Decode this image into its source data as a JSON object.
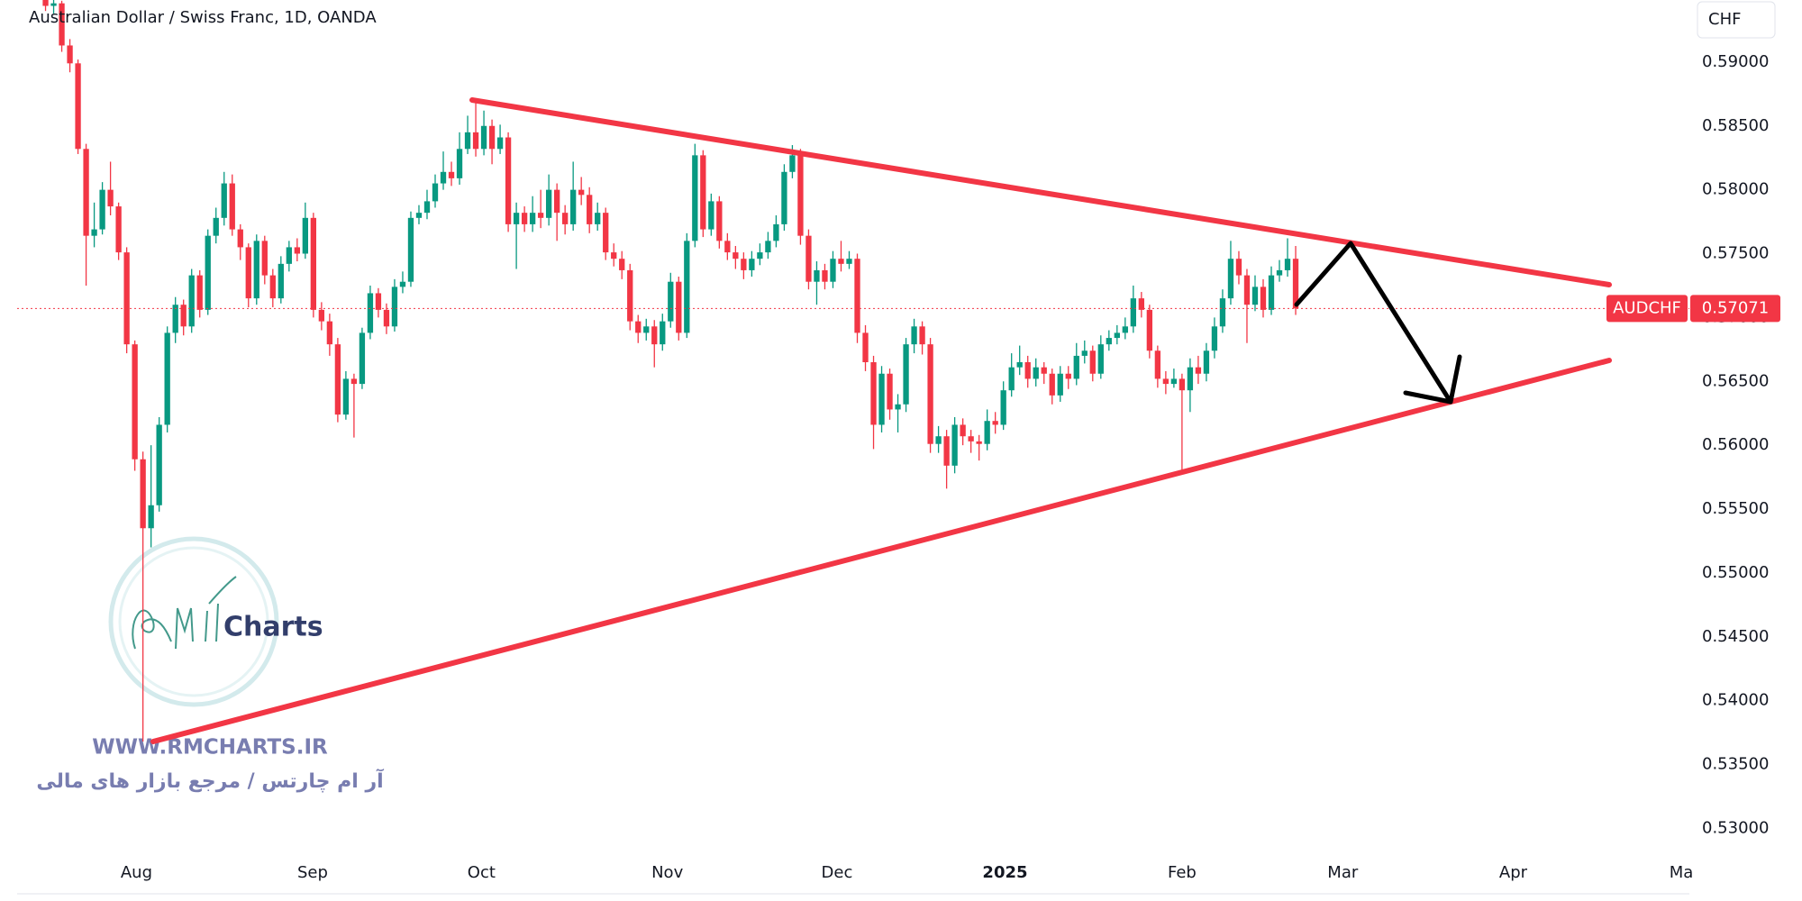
{
  "chart_data": {
    "type": "candlestick",
    "title": "Australian Dollar / Swiss Franc, 1D, OANDA",
    "currency": "CHF",
    "symbol": "AUDCHF",
    "up_color": "#089981",
    "down_color": "#f23645",
    "grid": false,
    "xlim": [
      -3.5,
      202.5
    ],
    "xticks": [
      {
        "value": 11.2,
        "label": "Aug"
      },
      {
        "value": 32.9,
        "label": "Sep"
      },
      {
        "value": 53.7,
        "label": "Oct"
      },
      {
        "value": 76.6,
        "label": "Nov"
      },
      {
        "value": 97.5,
        "label": "Dec"
      },
      {
        "value": 118.2,
        "label": "2025"
      },
      {
        "value": 140,
        "label": "Feb"
      },
      {
        "value": 159.8,
        "label": "Mar"
      },
      {
        "value": 180.8,
        "label": "Apr"
      },
      {
        "value": 201.5,
        "label": "Ma"
      }
    ],
    "ylim": [
      0.52784,
      0.59486
    ],
    "yticks": [
      {
        "value": 0.59,
        "label": "0.59000"
      },
      {
        "value": 0.585,
        "label": "0.58500"
      },
      {
        "value": 0.58,
        "label": "0.58000"
      },
      {
        "value": 0.575,
        "label": "0.57500"
      },
      {
        "value": 0.57,
        "label": "0.57000"
      },
      {
        "value": 0.565,
        "label": "0.56500"
      },
      {
        "value": 0.56,
        "label": "0.56000"
      },
      {
        "value": 0.555,
        "label": "0.55500"
      },
      {
        "value": 0.55,
        "label": "0.55000"
      },
      {
        "value": 0.545,
        "label": "0.54500"
      },
      {
        "value": 0.54,
        "label": "0.54000"
      },
      {
        "value": 0.535,
        "label": "0.53500"
      },
      {
        "value": 0.53,
        "label": "0.53000"
      }
    ],
    "ohlc": [
      [
        0.595,
        0.5956,
        0.594,
        0.5944
      ],
      [
        0.5944,
        0.5952,
        0.5938,
        0.5946
      ],
      [
        0.5946,
        0.5948,
        0.5908,
        0.5913
      ],
      [
        0.5913,
        0.5918,
        0.5892,
        0.5899
      ],
      [
        0.5899,
        0.5902,
        0.5828,
        0.5832
      ],
      [
        0.5832,
        0.5836,
        0.5725,
        0.5764
      ],
      [
        0.5764,
        0.579,
        0.5755,
        0.5769
      ],
      [
        0.5769,
        0.5806,
        0.5765,
        0.58
      ],
      [
        0.58,
        0.5822,
        0.578,
        0.5787
      ],
      [
        0.5787,
        0.579,
        0.5745,
        0.5751
      ],
      [
        0.5751,
        0.5755,
        0.5672,
        0.5679
      ],
      [
        0.5679,
        0.5682,
        0.558,
        0.5589
      ],
      [
        0.5589,
        0.5595,
        0.5368,
        0.5535
      ],
      [
        0.5535,
        0.56,
        0.552,
        0.5553
      ],
      [
        0.5553,
        0.5622,
        0.5548,
        0.5616
      ],
      [
        0.5616,
        0.5693,
        0.561,
        0.5688
      ],
      [
        0.5688,
        0.5716,
        0.568,
        0.571
      ],
      [
        0.571,
        0.5714,
        0.5686,
        0.5693
      ],
      [
        0.5693,
        0.5738,
        0.5688,
        0.5733
      ],
      [
        0.5733,
        0.5737,
        0.57,
        0.5706
      ],
      [
        0.5706,
        0.5769,
        0.5702,
        0.5764
      ],
      [
        0.5764,
        0.5786,
        0.5758,
        0.5778
      ],
      [
        0.5778,
        0.5814,
        0.5772,
        0.5805
      ],
      [
        0.5805,
        0.5812,
        0.5764,
        0.5769
      ],
      [
        0.5769,
        0.5773,
        0.5745,
        0.5755
      ],
      [
        0.5755,
        0.5758,
        0.5708,
        0.5715
      ],
      [
        0.5715,
        0.5765,
        0.571,
        0.576
      ],
      [
        0.576,
        0.5764,
        0.5726,
        0.5733
      ],
      [
        0.5733,
        0.5738,
        0.5708,
        0.5715
      ],
      [
        0.5715,
        0.5748,
        0.5711,
        0.5742
      ],
      [
        0.5742,
        0.576,
        0.5736,
        0.5755
      ],
      [
        0.5755,
        0.5762,
        0.5744,
        0.575
      ],
      [
        0.575,
        0.579,
        0.5746,
        0.5778
      ],
      [
        0.5778,
        0.5782,
        0.57,
        0.5706
      ],
      [
        0.5706,
        0.5712,
        0.569,
        0.5697
      ],
      [
        0.5697,
        0.5703,
        0.567,
        0.5679
      ],
      [
        0.5679,
        0.5684,
        0.5618,
        0.5624
      ],
      [
        0.5624,
        0.5658,
        0.562,
        0.5652
      ],
      [
        0.5652,
        0.5656,
        0.5606,
        0.5648
      ],
      [
        0.5648,
        0.5692,
        0.5644,
        0.5688
      ],
      [
        0.5688,
        0.5725,
        0.5683,
        0.5719
      ],
      [
        0.5719,
        0.5723,
        0.57,
        0.5706
      ],
      [
        0.5706,
        0.5711,
        0.5687,
        0.5693
      ],
      [
        0.5693,
        0.573,
        0.5689,
        0.5724
      ],
      [
        0.5724,
        0.5736,
        0.5719,
        0.5728
      ],
      [
        0.5728,
        0.5783,
        0.5724,
        0.5778
      ],
      [
        0.5778,
        0.5788,
        0.5773,
        0.5782
      ],
      [
        0.5782,
        0.58,
        0.5777,
        0.5791
      ],
      [
        0.5791,
        0.5812,
        0.5786,
        0.5805
      ],
      [
        0.5805,
        0.583,
        0.58,
        0.5814
      ],
      [
        0.5814,
        0.5822,
        0.5803,
        0.5809
      ],
      [
        0.5809,
        0.5845,
        0.5804,
        0.5832
      ],
      [
        0.5832,
        0.5858,
        0.5828,
        0.5845
      ],
      [
        0.5845,
        0.5869,
        0.5826,
        0.5832
      ],
      [
        0.5832,
        0.5862,
        0.5827,
        0.585
      ],
      [
        0.585,
        0.5855,
        0.582,
        0.5832
      ],
      [
        0.5832,
        0.5851,
        0.5828,
        0.5841
      ],
      [
        0.5841,
        0.5845,
        0.5767,
        0.5773
      ],
      [
        0.5773,
        0.579,
        0.5738,
        0.5782
      ],
      [
        0.5782,
        0.5787,
        0.5767,
        0.5773
      ],
      [
        0.5773,
        0.5795,
        0.5767,
        0.5782
      ],
      [
        0.5782,
        0.58,
        0.577,
        0.5778
      ],
      [
        0.5778,
        0.5812,
        0.5772,
        0.58
      ],
      [
        0.58,
        0.5805,
        0.576,
        0.5782
      ],
      [
        0.5782,
        0.5788,
        0.5765,
        0.5773
      ],
      [
        0.5773,
        0.5822,
        0.5768,
        0.58
      ],
      [
        0.58,
        0.581,
        0.5788,
        0.5796
      ],
      [
        0.5796,
        0.5802,
        0.5766,
        0.5773
      ],
      [
        0.5773,
        0.579,
        0.5768,
        0.5782
      ],
      [
        0.5782,
        0.5786,
        0.5745,
        0.5751
      ],
      [
        0.5751,
        0.5758,
        0.574,
        0.5746
      ],
      [
        0.5746,
        0.5752,
        0.573,
        0.5737
      ],
      [
        0.5737,
        0.5742,
        0.569,
        0.5697
      ],
      [
        0.5697,
        0.5702,
        0.568,
        0.5688
      ],
      [
        0.5688,
        0.5699,
        0.5682,
        0.5693
      ],
      [
        0.5693,
        0.5698,
        0.5661,
        0.5679
      ],
      [
        0.5679,
        0.5703,
        0.5674,
        0.5697
      ],
      [
        0.5697,
        0.5735,
        0.5692,
        0.5728
      ],
      [
        0.5728,
        0.5732,
        0.5682,
        0.5688
      ],
      [
        0.5688,
        0.5766,
        0.5684,
        0.576
      ],
      [
        0.576,
        0.5836,
        0.5755,
        0.5827
      ],
      [
        0.5827,
        0.5831,
        0.5763,
        0.5769
      ],
      [
        0.5769,
        0.5797,
        0.5764,
        0.5791
      ],
      [
        0.5791,
        0.5795,
        0.5754,
        0.576
      ],
      [
        0.576,
        0.5766,
        0.5745,
        0.5751
      ],
      [
        0.5751,
        0.5756,
        0.5738,
        0.5746
      ],
      [
        0.5746,
        0.5751,
        0.573,
        0.5737
      ],
      [
        0.5737,
        0.5752,
        0.5732,
        0.5746
      ],
      [
        0.5746,
        0.5758,
        0.5741,
        0.5751
      ],
      [
        0.5751,
        0.5767,
        0.5746,
        0.576
      ],
      [
        0.576,
        0.578,
        0.5755,
        0.5773
      ],
      [
        0.5773,
        0.582,
        0.5768,
        0.5814
      ],
      [
        0.5814,
        0.5835,
        0.5809,
        0.5827
      ],
      [
        0.5827,
        0.5832,
        0.5757,
        0.5764
      ],
      [
        0.5764,
        0.5769,
        0.5722,
        0.5728
      ],
      [
        0.5728,
        0.5744,
        0.571,
        0.5737
      ],
      [
        0.5737,
        0.5742,
        0.5722,
        0.5728
      ],
      [
        0.5728,
        0.5752,
        0.5723,
        0.5746
      ],
      [
        0.5746,
        0.576,
        0.5736,
        0.5742
      ],
      [
        0.5742,
        0.5752,
        0.5738,
        0.5746
      ],
      [
        0.5746,
        0.575,
        0.568,
        0.5688
      ],
      [
        0.5688,
        0.5694,
        0.5658,
        0.5665
      ],
      [
        0.5665,
        0.567,
        0.5597,
        0.5616
      ],
      [
        0.5616,
        0.5662,
        0.561,
        0.5656
      ],
      [
        0.5656,
        0.566,
        0.562,
        0.5628
      ],
      [
        0.5628,
        0.564,
        0.561,
        0.5632
      ],
      [
        0.5632,
        0.5684,
        0.5626,
        0.5679
      ],
      [
        0.5679,
        0.5699,
        0.5672,
        0.5693
      ],
      [
        0.5693,
        0.5697,
        0.5671,
        0.5679
      ],
      [
        0.5679,
        0.5684,
        0.5594,
        0.5601
      ],
      [
        0.5601,
        0.5615,
        0.5594,
        0.5607
      ],
      [
        0.5607,
        0.5612,
        0.5566,
        0.5584
      ],
      [
        0.5584,
        0.5622,
        0.5578,
        0.5616
      ],
      [
        0.5616,
        0.5621,
        0.56,
        0.5607
      ],
      [
        0.5607,
        0.5612,
        0.5594,
        0.5603
      ],
      [
        0.5603,
        0.5608,
        0.5588,
        0.5601
      ],
      [
        0.5601,
        0.5628,
        0.5596,
        0.5619
      ],
      [
        0.5619,
        0.5626,
        0.5609,
        0.5616
      ],
      [
        0.5616,
        0.565,
        0.5612,
        0.5643
      ],
      [
        0.5643,
        0.5672,
        0.5638,
        0.5661
      ],
      [
        0.5661,
        0.5678,
        0.5655,
        0.5665
      ],
      [
        0.5665,
        0.567,
        0.5645,
        0.5652
      ],
      [
        0.5652,
        0.5668,
        0.5646,
        0.5661
      ],
      [
        0.5661,
        0.5665,
        0.5648,
        0.5656
      ],
      [
        0.5656,
        0.566,
        0.5632,
        0.5639
      ],
      [
        0.5639,
        0.5662,
        0.5634,
        0.5656
      ],
      [
        0.5656,
        0.5662,
        0.5644,
        0.5652
      ],
      [
        0.5652,
        0.568,
        0.5647,
        0.567
      ],
      [
        0.567,
        0.5682,
        0.5664,
        0.5674
      ],
      [
        0.5674,
        0.5678,
        0.565,
        0.5656
      ],
      [
        0.5656,
        0.5686,
        0.5652,
        0.5679
      ],
      [
        0.5679,
        0.569,
        0.5674,
        0.5684
      ],
      [
        0.5684,
        0.5694,
        0.5679,
        0.5688
      ],
      [
        0.5688,
        0.57,
        0.5683,
        0.5693
      ],
      [
        0.5693,
        0.5725,
        0.5688,
        0.5715
      ],
      [
        0.5715,
        0.572,
        0.57,
        0.5706
      ],
      [
        0.5706,
        0.571,
        0.5668,
        0.5674
      ],
      [
        0.5674,
        0.5678,
        0.5645,
        0.5652
      ],
      [
        0.5652,
        0.5658,
        0.564,
        0.5648
      ],
      [
        0.5648,
        0.566,
        0.5645,
        0.5652
      ],
      [
        0.5652,
        0.5656,
        0.5577,
        0.5643
      ],
      [
        0.5643,
        0.5668,
        0.5626,
        0.5661
      ],
      [
        0.5661,
        0.567,
        0.5648,
        0.5656
      ],
      [
        0.5656,
        0.568,
        0.565,
        0.5674
      ],
      [
        0.5674,
        0.57,
        0.5668,
        0.5693
      ],
      [
        0.5693,
        0.5722,
        0.5688,
        0.5715
      ],
      [
        0.5715,
        0.576,
        0.571,
        0.5746
      ],
      [
        0.5746,
        0.5752,
        0.5726,
        0.5733
      ],
      [
        0.5733,
        0.5738,
        0.568,
        0.571
      ],
      [
        0.571,
        0.5733,
        0.5705,
        0.5724
      ],
      [
        0.5724,
        0.573,
        0.57,
        0.5706
      ],
      [
        0.5706,
        0.574,
        0.5702,
        0.5733
      ],
      [
        0.5733,
        0.5745,
        0.5728,
        0.5737
      ],
      [
        0.5737,
        0.5762,
        0.5732,
        0.5746
      ],
      [
        0.5746,
        0.5756,
        0.5702,
        0.57071
      ]
    ]
  },
  "watermark": {
    "logo_text": "Charts",
    "url": "WWW.RMCHARTS.IR",
    "tagline": "آر ام چارتس / مرجع بازار های مالی"
  }
}
